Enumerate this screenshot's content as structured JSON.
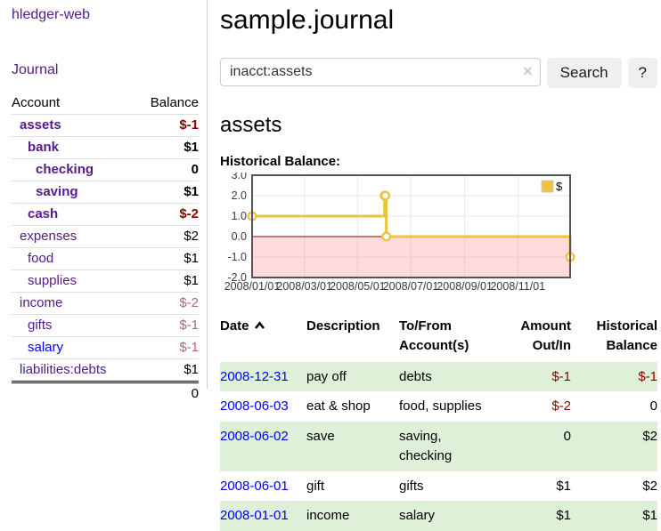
{
  "brand": "hledger-web",
  "sidebar": {
    "nav_journal": "Journal",
    "accounts": {
      "header_account": "Account",
      "header_balance": "Balance",
      "rows": [
        {
          "name": "assets",
          "balance": "$-1"
        },
        {
          "name": "bank",
          "balance": "$1"
        },
        {
          "name": "checking",
          "balance": "0"
        },
        {
          "name": "saving",
          "balance": "$1"
        },
        {
          "name": "cash",
          "balance": "$-2"
        },
        {
          "name": "expenses",
          "balance": "$2"
        },
        {
          "name": "food",
          "balance": "$1"
        },
        {
          "name": "supplies",
          "balance": "$1"
        },
        {
          "name": "income",
          "balance": "$-2"
        },
        {
          "name": "gifts",
          "balance": "$-1"
        },
        {
          "name": "salary",
          "balance": "$-1"
        },
        {
          "name": "liabilities:debts",
          "balance": "$1"
        }
      ],
      "total": "0"
    }
  },
  "main": {
    "title": "sample.journal",
    "search": {
      "value": "inacct:assets",
      "clear_icon": "×",
      "search_button": "Search",
      "help_button": "?"
    },
    "account_heading": "assets",
    "section_label": "Historical Balance:"
  },
  "chart_data": {
    "type": "line",
    "style": "step",
    "title": "Historical Balance:",
    "series": [
      {
        "name": "$",
        "color": "#EDC240",
        "points": [
          {
            "date": "2008-01-01",
            "value": 1
          },
          {
            "date": "2008-06-01",
            "value": 2
          },
          {
            "date": "2008-06-02",
            "value": 2
          },
          {
            "date": "2008-06-03",
            "value": 0
          },
          {
            "date": "2008-12-31",
            "value": -1
          }
        ]
      }
    ],
    "xlim": [
      "2008-01-01",
      "2008-12-31"
    ],
    "ylim": [
      -2,
      3
    ],
    "y_ticks": [
      "3.0",
      "2.0",
      "1.0",
      "0.0",
      "-1.0",
      "-2.0"
    ],
    "x_ticks": [
      "2008/01/01",
      "2008/03/01",
      "2008/05/01",
      "2008/07/01",
      "2008/09/01",
      "2008/11/01"
    ],
    "legend": {
      "label": "$",
      "position": "top-right"
    },
    "grid": true,
    "negative_region_fill": "rgba(255,80,80,0.2)",
    "zero_line_color": "#8B0000"
  },
  "register": {
    "headers": [
      {
        "line1": "Date",
        "line2": ""
      },
      {
        "line1": "Description",
        "line2": ""
      },
      {
        "line1": "To/From",
        "line2": "Account(s)"
      },
      {
        "line1": "Amount",
        "line2": "Out/In"
      },
      {
        "line1": "Historical",
        "line2": "Balance"
      }
    ],
    "rows": [
      {
        "date": "2008-12-31",
        "description": "pay off",
        "accounts": "debts",
        "amount": "$-1",
        "balance": "$-1"
      },
      {
        "date": "2008-06-03",
        "description": "eat & shop",
        "accounts": "food, supplies",
        "amount": "$-2",
        "balance": "0"
      },
      {
        "date": "2008-06-02",
        "description": "save",
        "accounts": "saving, checking",
        "amount": "0",
        "balance": "$2"
      },
      {
        "date": "2008-06-01",
        "description": "gift",
        "accounts": "gifts",
        "amount": "$1",
        "balance": "$2"
      },
      {
        "date": "2008-01-01",
        "description": "income",
        "accounts": "salary",
        "amount": "$1",
        "balance": "$1"
      }
    ]
  }
}
